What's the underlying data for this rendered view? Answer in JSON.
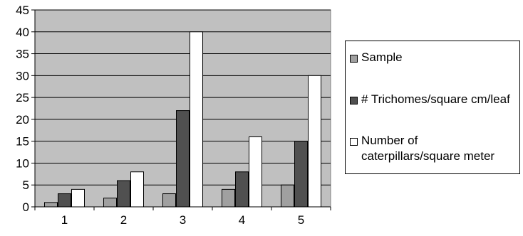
{
  "chart_data": {
    "type": "bar",
    "categories": [
      "1",
      "2",
      "3",
      "4",
      "5"
    ],
    "series": [
      {
        "name": "Sample",
        "values": [
          1,
          2,
          3,
          4,
          5
        ],
        "color": "#A0A0A0"
      },
      {
        "name": "# Trichomes/square cm/leaf",
        "values": [
          3,
          6,
          22,
          8,
          15
        ],
        "color": "#505050"
      },
      {
        "name": "Number of caterpillars/square meter",
        "values": [
          4,
          8,
          40,
          16,
          30
        ],
        "color": "#FFFFFF"
      }
    ],
    "yticks": [
      "0",
      "5",
      "10",
      "15",
      "20",
      "25",
      "30",
      "35",
      "40",
      "45"
    ],
    "ylim": [
      0,
      45
    ],
    "grid": true,
    "plot_background": "#C0C0C0",
    "legend_position": "right"
  }
}
